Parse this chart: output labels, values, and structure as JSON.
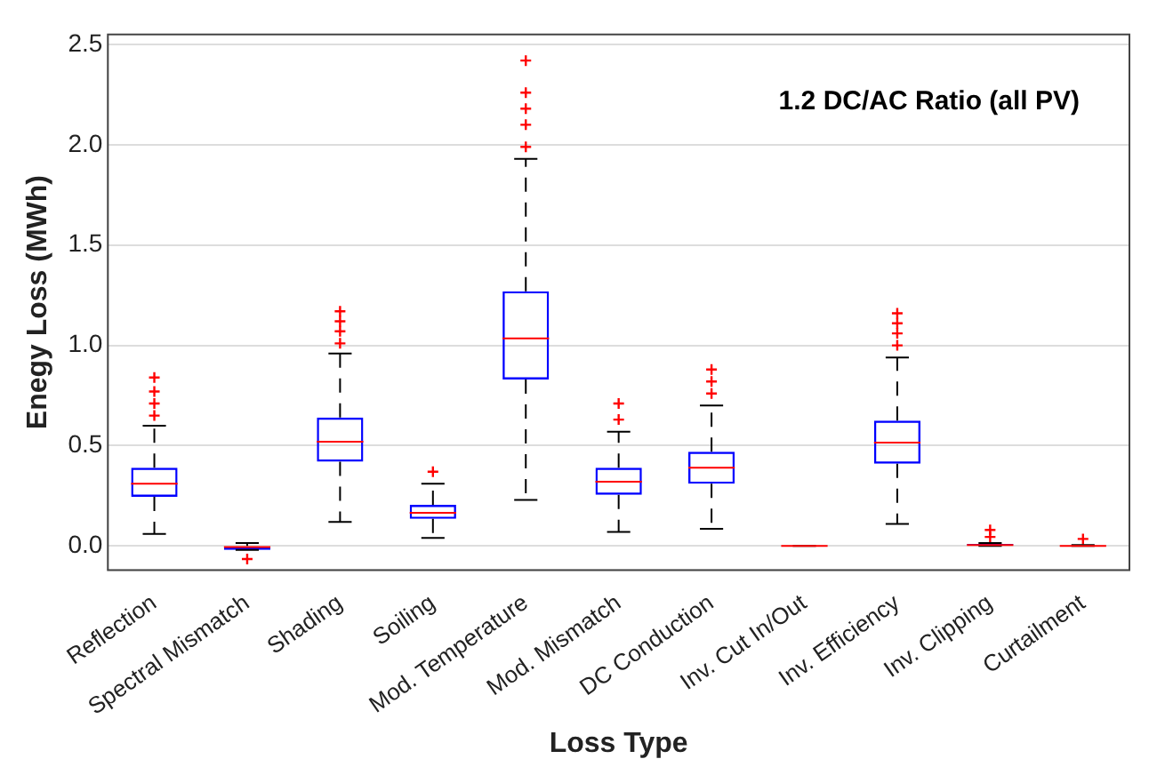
{
  "chart_data": {
    "type": "box",
    "title": "1.2 DC/AC Ratio (all PV)",
    "xlabel": "Loss Type",
    "ylabel": "Enegy Loss (MWh)",
    "categories": [
      "Reflection",
      "Spectral Mismatch",
      "Shading",
      "Soiling",
      "Mod. Temperature",
      "Mod. Mismatch",
      "DC Conduction",
      "Inv. Cut In/Out",
      "Inv. Efficiency",
      "Inv. Clipping",
      "Curtailment"
    ],
    "boxes": [
      {
        "low": 0.06,
        "q1": 0.245,
        "median": 0.31,
        "q3": 0.39,
        "high": 0.6,
        "outliers": [
          0.65,
          0.71,
          0.77,
          0.84
        ]
      },
      {
        "low": -0.02,
        "q1": -0.02,
        "median": -0.005,
        "q3": 0,
        "high": 0.015,
        "outliers": [
          -0.065
        ]
      },
      {
        "low": 0.12,
        "q1": 0.42,
        "median": 0.52,
        "q3": 0.64,
        "high": 0.96,
        "outliers": [
          1.01,
          1.07,
          1.12,
          1.17
        ]
      },
      {
        "low": 0.04,
        "q1": 0.135,
        "median": 0.165,
        "q3": 0.205,
        "high": 0.31,
        "outliers": [
          0.37
        ]
      },
      {
        "low": 0.23,
        "q1": 0.83,
        "median": 1.035,
        "q3": 1.27,
        "high": 1.93,
        "outliers": [
          1.99,
          2.1,
          2.18,
          2.26,
          2.42
        ]
      },
      {
        "low": 0.07,
        "q1": 0.255,
        "median": 0.32,
        "q3": 0.39,
        "high": 0.57,
        "outliers": [
          0.63,
          0.71
        ]
      },
      {
        "low": 0.085,
        "q1": 0.31,
        "median": 0.39,
        "q3": 0.47,
        "high": 0.7,
        "outliers": [
          0.76,
          0.82,
          0.88
        ]
      },
      {
        "low": 0,
        "q1": 0,
        "median": 0,
        "q3": 0,
        "high": 0
      },
      {
        "low": 0.11,
        "q1": 0.41,
        "median": 0.515,
        "q3": 0.625,
        "high": 0.94,
        "outliers": [
          1.0,
          1.06,
          1.11,
          1.16
        ]
      },
      {
        "low": 0,
        "q1": 0,
        "median": 0.005,
        "q3": 0.01,
        "high": 0.015,
        "outliers": [
          0.045,
          0.08
        ]
      },
      {
        "low": 0,
        "q1": 0,
        "median": 0,
        "q3": 0.005,
        "high": 0.005,
        "outliers": [
          0.035
        ]
      }
    ],
    "ylim": [
      -0.12,
      2.55
    ],
    "yticks": [
      {
        "value": 0,
        "label": "0.0"
      },
      {
        "value": 0.5,
        "label": "0.5"
      },
      {
        "value": 1,
        "label": "1.0"
      },
      {
        "value": 1.5,
        "label": "1.5"
      },
      {
        "value": 2,
        "label": "2.0"
      },
      {
        "value": 2.5,
        "label": "2.5"
      }
    ],
    "grid": "y",
    "legend": false,
    "marker": "cross"
  }
}
